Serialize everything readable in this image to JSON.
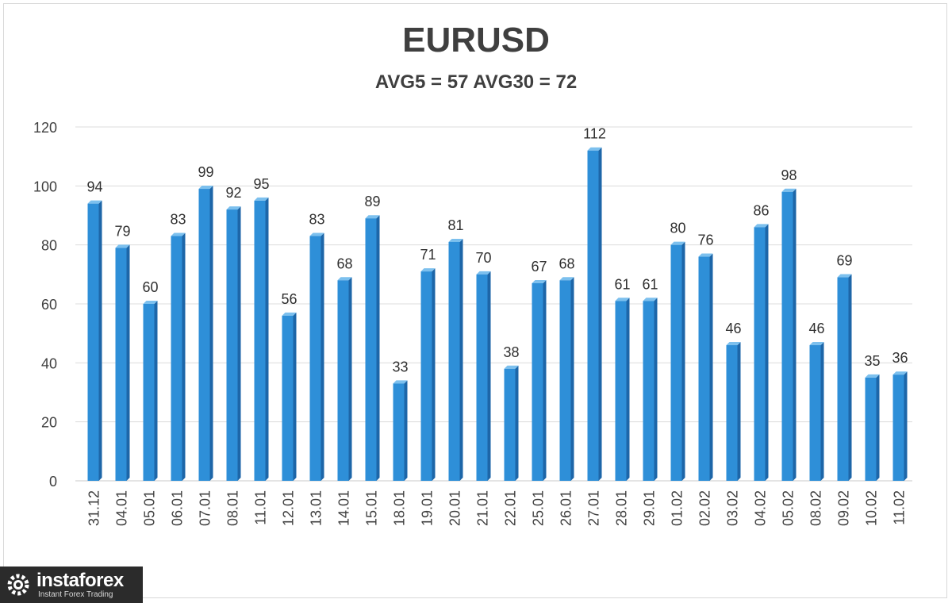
{
  "chart_data": {
    "type": "bar",
    "title": "EURUSD",
    "subtitle": "AVG5 = 57 AVG30 = 72",
    "xlabel": "",
    "ylabel": "",
    "ylim": [
      0,
      120
    ],
    "yticks": [
      0,
      20,
      40,
      60,
      80,
      100,
      120
    ],
    "grid": true,
    "legend": "none",
    "bar_color": "#2e8fd8",
    "categories": [
      "31.12",
      "04.01",
      "05.01",
      "06.01",
      "07.01",
      "08.01",
      "11.01",
      "12.01",
      "13.01",
      "14.01",
      "15.01",
      "18.01",
      "19.01",
      "20.01",
      "21.01",
      "22.01",
      "25.01",
      "26.01",
      "27.01",
      "28.01",
      "29.01",
      "01.02",
      "02.02",
      "03.02",
      "04.02",
      "05.02",
      "08.02",
      "09.02",
      "10.02",
      "11.02"
    ],
    "values": [
      94,
      79,
      60,
      83,
      99,
      92,
      95,
      56,
      83,
      68,
      89,
      33,
      71,
      81,
      70,
      38,
      67,
      68,
      112,
      61,
      61,
      80,
      76,
      46,
      86,
      98,
      46,
      69,
      35,
      36
    ]
  },
  "logo": {
    "name": "instaforex",
    "tagline": "Instant Forex Trading"
  }
}
